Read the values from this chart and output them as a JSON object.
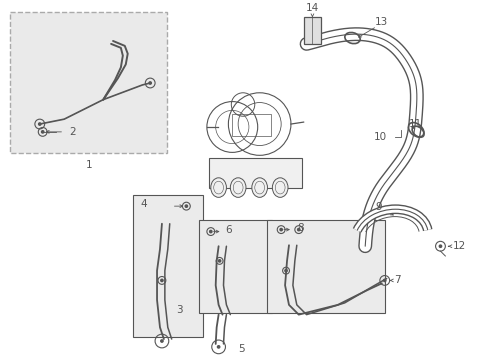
{
  "bg_color": "#ffffff",
  "box_bg": "#e8e8e8",
  "line_color": "#555555",
  "label_color": "#222222",
  "lw": 0.9,
  "fs": 7.5
}
